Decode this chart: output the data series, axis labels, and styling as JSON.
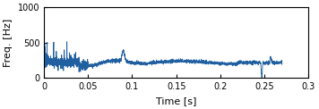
{
  "title": "",
  "xlabel": "Time [s]",
  "ylabel": "Freq. [Hz]",
  "xlim": [
    0,
    0.3
  ],
  "ylim": [
    0,
    1000
  ],
  "xticks": [
    0,
    0.05,
    0.1,
    0.15,
    0.2,
    0.25,
    0.3
  ],
  "yticks": [
    0,
    500,
    1000
  ],
  "line_color": "#2060a0",
  "line_width": 0.6,
  "figsize": [
    3.56,
    1.22
  ],
  "dpi": 100
}
